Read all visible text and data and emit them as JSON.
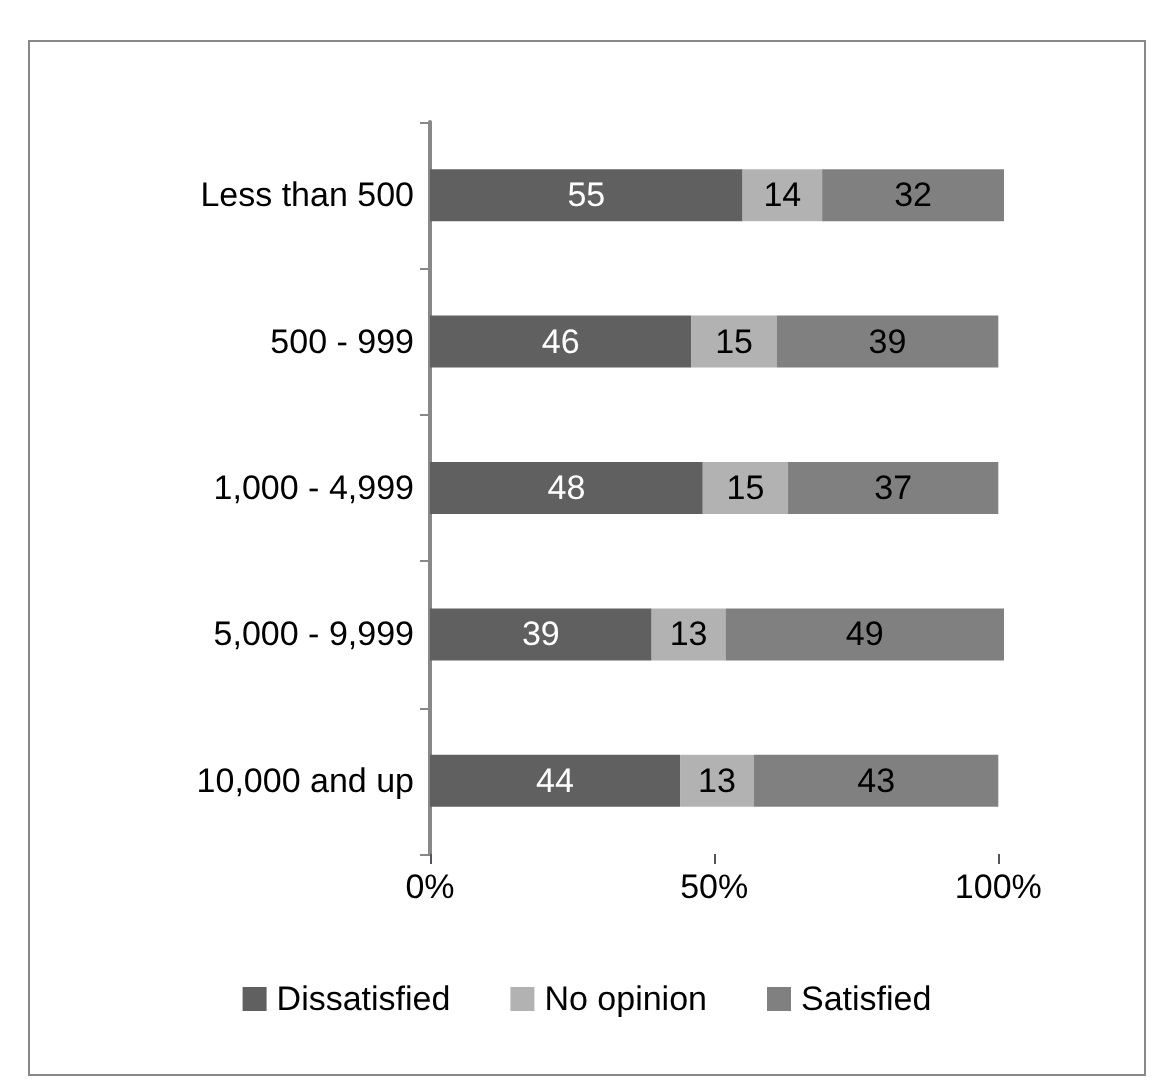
{
  "chart_data": {
    "type": "bar",
    "orientation": "horizontal",
    "stacked": true,
    "categories": [
      "Less than 500",
      "500 - 999",
      "1,000 - 4,999",
      "5,000 - 9,999",
      "10,000 and up"
    ],
    "series": [
      {
        "name": "Dissatisfied",
        "color": "#606060",
        "values": [
          55,
          46,
          48,
          39,
          44
        ]
      },
      {
        "name": "No opinion",
        "color": "#b2b2b2",
        "values": [
          14,
          15,
          15,
          13,
          13
        ]
      },
      {
        "name": "Satisfied",
        "color": "#808080",
        "values": [
          32,
          39,
          37,
          49,
          43
        ]
      }
    ],
    "xlim": [
      0,
      101
    ],
    "xticks": [
      {
        "value": 0,
        "label": "0%"
      },
      {
        "value": 50,
        "label": "50%"
      },
      {
        "value": 100,
        "label": "100%"
      }
    ],
    "data_labels": true,
    "grid": false,
    "legend": "bottom"
  }
}
